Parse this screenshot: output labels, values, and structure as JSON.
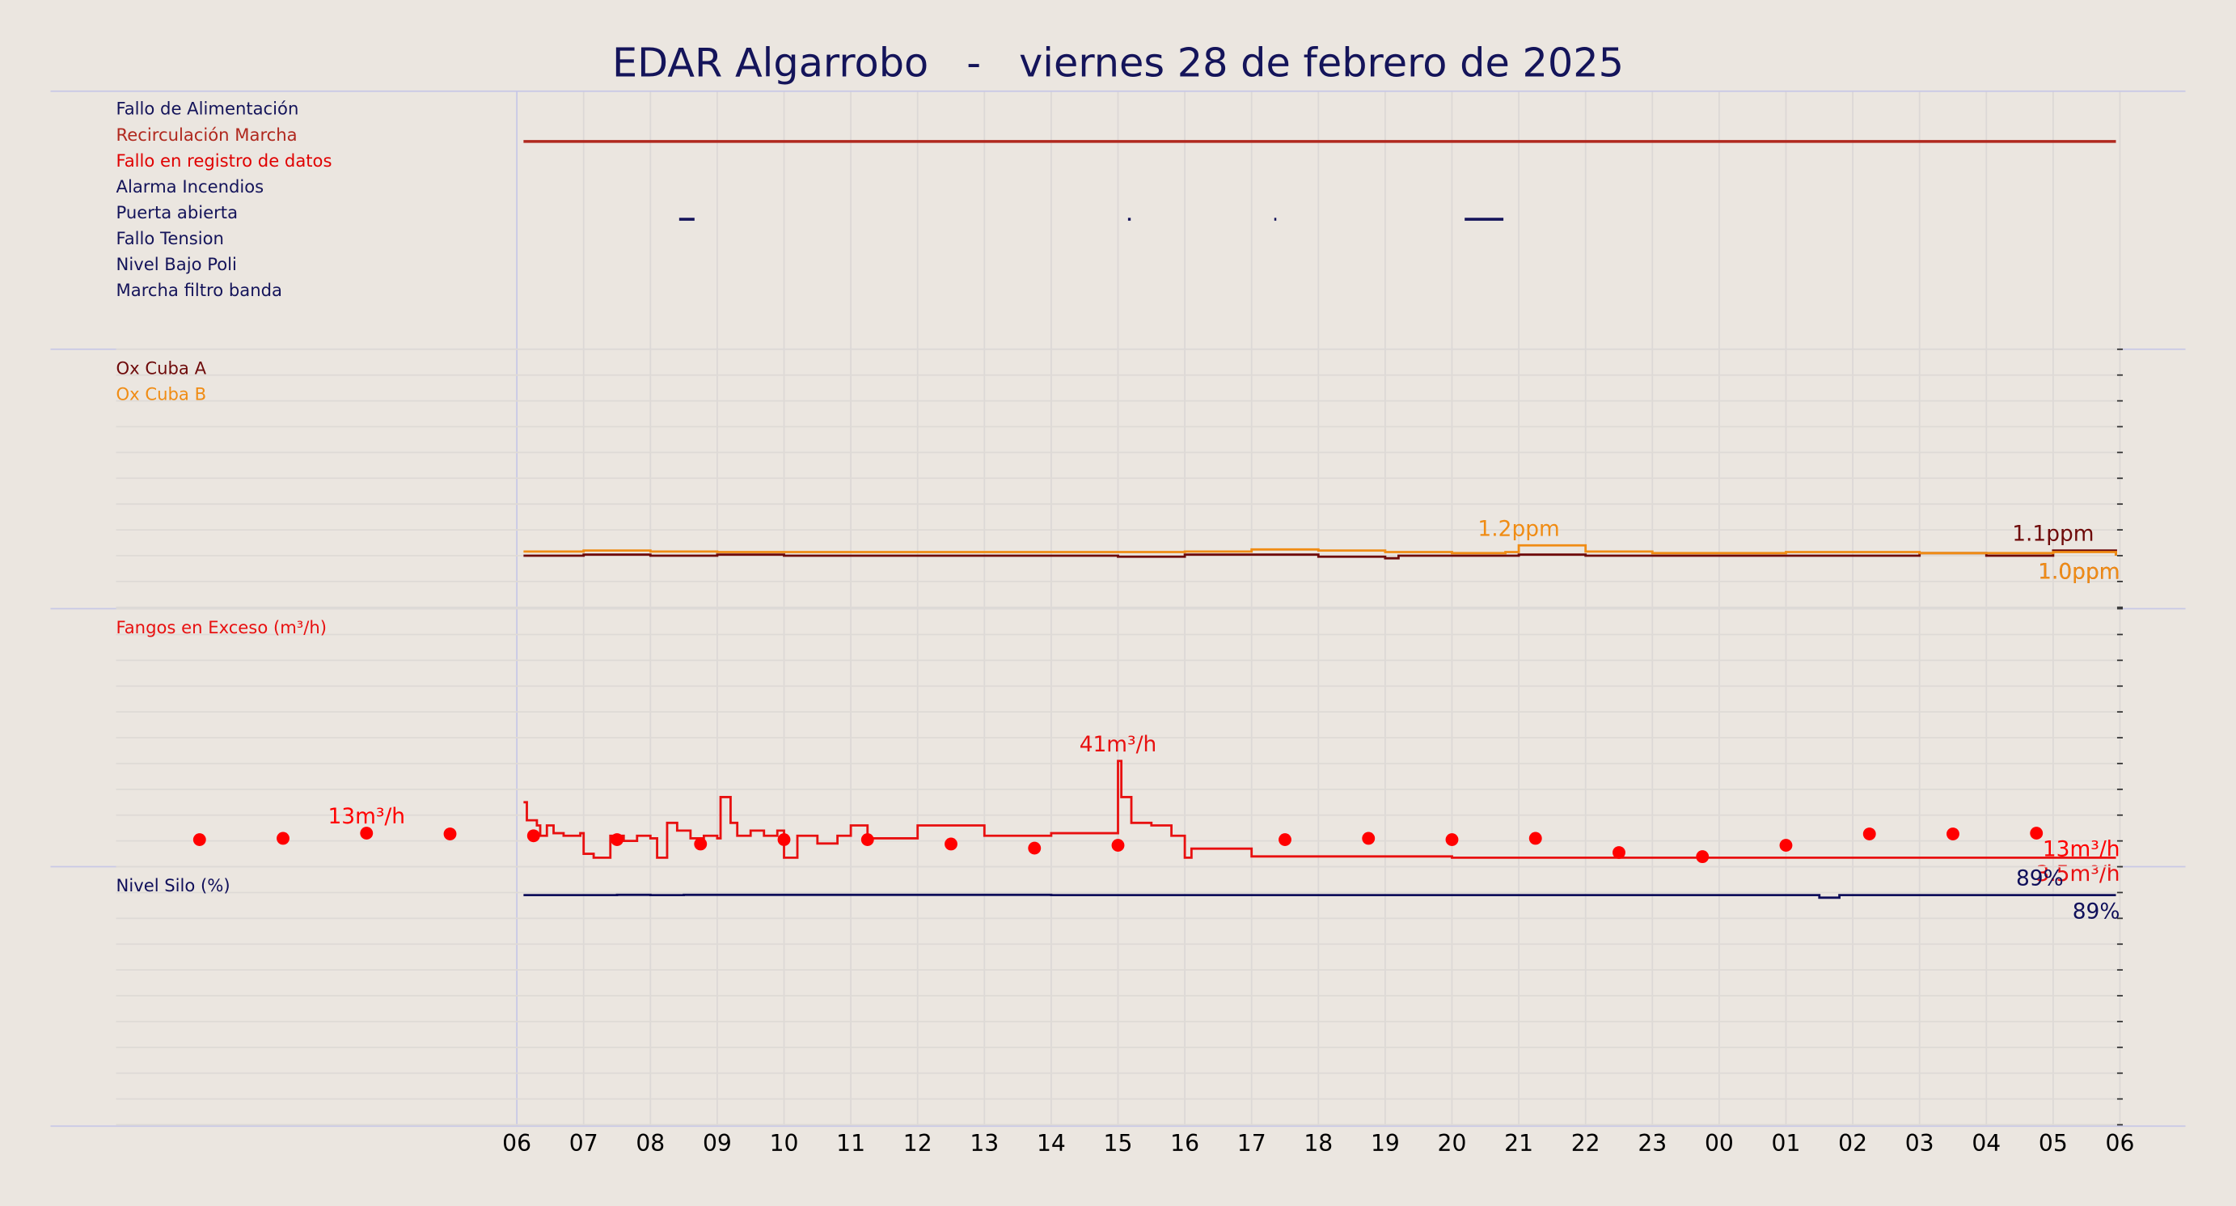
{
  "title": "EDAR Algarrobo   -   viernes 28 de febrero de 2025",
  "xlim": [
    -6,
    24
  ],
  "xticks": [
    {
      "value": 0,
      "label": "06"
    },
    {
      "value": 1,
      "label": "07"
    },
    {
      "value": 2,
      "label": "08"
    },
    {
      "value": 3,
      "label": "09"
    },
    {
      "value": 4,
      "label": "10"
    },
    {
      "value": 5,
      "label": "11"
    },
    {
      "value": 6,
      "label": "12"
    },
    {
      "value": 7,
      "label": "13"
    },
    {
      "value": 8,
      "label": "14"
    },
    {
      "value": 9,
      "label": "15"
    },
    {
      "value": 10,
      "label": "16"
    },
    {
      "value": 11,
      "label": "17"
    },
    {
      "value": 12,
      "label": "18"
    },
    {
      "value": 13,
      "label": "19"
    },
    {
      "value": 14,
      "label": "20"
    },
    {
      "value": 15,
      "label": "21"
    },
    {
      "value": 16,
      "label": "22"
    },
    {
      "value": 17,
      "label": "23"
    },
    {
      "value": 18,
      "label": "00"
    },
    {
      "value": 19,
      "label": "01"
    },
    {
      "value": 20,
      "label": "02"
    },
    {
      "value": 21,
      "label": "03"
    },
    {
      "value": 22,
      "label": "04"
    },
    {
      "value": 23,
      "label": "05"
    },
    {
      "value": 24,
      "label": "06"
    }
  ],
  "chart_data": [
    {
      "type": "digital",
      "series": [
        {
          "name": "Fallo de Alimentación",
          "color": "#14145a",
          "intervals": []
        },
        {
          "name": "Recirculación Marcha",
          "color": "#b0281e",
          "intervals": [
            [
              0.1,
              23.94
            ]
          ]
        },
        {
          "name": "Fallo en registro de datos",
          "color": "#e00000",
          "intervals": []
        },
        {
          "name": "Alarma Incendios",
          "color": "#14145a",
          "intervals": []
        },
        {
          "name": "Puerta abierta",
          "color": "#14145a",
          "intervals": [
            [
              2.43,
              2.66
            ],
            [
              9.15,
              9.19
            ],
            [
              11.34,
              11.37
            ],
            [
              14.19,
              14.77
            ]
          ]
        },
        {
          "name": "Fallo Tension",
          "color": "#14145a",
          "intervals": []
        },
        {
          "name": "Nivel Bajo Poli",
          "color": "#14145a",
          "intervals": []
        },
        {
          "name": "Marcha filtro banda",
          "color": "#14145a",
          "intervals": []
        }
      ]
    },
    {
      "type": "line",
      "ylim": [
        0,
        5
      ],
      "yticks": [
        0,
        0.5,
        1,
        1.5,
        2,
        2.5,
        3,
        3.5,
        4,
        4.5,
        5
      ],
      "series": [
        {
          "name": "Ox Cuba A",
          "color": "#6e0a0a",
          "x": [
            0.1,
            1,
            2,
            3,
            4,
            5,
            6,
            7,
            8,
            9,
            10,
            11,
            12,
            13,
            13.2,
            14,
            15,
            16,
            17,
            18,
            19,
            20,
            21,
            22,
            23,
            23.94
          ],
          "values": [
            1.0,
            1.02,
            1.0,
            1.02,
            1.0,
            1.0,
            1.0,
            1.0,
            1.0,
            0.98,
            1.02,
            1.02,
            0.98,
            0.95,
            1.0,
            1.0,
            1.02,
            1.0,
            1.0,
            1.0,
            1.0,
            1.0,
            1.05,
            1.0,
            1.1,
            1.0
          ],
          "value_labels": [
            null,
            null,
            null,
            null,
            null,
            null,
            null,
            null,
            null,
            null,
            null,
            null,
            null,
            null,
            null,
            null,
            null,
            null,
            null,
            null,
            null,
            null,
            null,
            null,
            "1.1ppm",
            "1.0ppm"
          ]
        },
        {
          "name": "Ox Cuba B",
          "color": "#f08c14",
          "x": [
            0.1,
            1,
            2,
            3,
            4,
            5,
            6,
            7,
            8,
            9,
            10,
            11,
            12,
            13,
            14,
            14.8,
            15,
            16,
            17,
            18,
            19,
            20,
            21,
            22,
            23,
            23.94
          ],
          "values": [
            1.08,
            1.1,
            1.08,
            1.07,
            1.07,
            1.07,
            1.07,
            1.07,
            1.07,
            1.07,
            1.08,
            1.12,
            1.1,
            1.07,
            1.05,
            1.07,
            1.2,
            1.08,
            1.05,
            1.05,
            1.07,
            1.07,
            1.05,
            1.05,
            1.07,
            1.0
          ],
          "value_labels": [
            null,
            null,
            null,
            null,
            null,
            null,
            null,
            null,
            null,
            null,
            null,
            null,
            null,
            null,
            null,
            null,
            "1.2ppm",
            null,
            null,
            null,
            null,
            null,
            null,
            null,
            null,
            "1.0ppm"
          ]
        }
      ]
    },
    {
      "type": "line",
      "ylim": [
        0,
        100
      ],
      "yticks": [
        0,
        10,
        20,
        30,
        40,
        50,
        60,
        70,
        80,
        90,
        100
      ],
      "series": [
        {
          "name": "Fangos en Exceso (m³/h)",
          "color": "#e81010",
          "x": [
            0.1,
            0.15,
            0.3,
            0.35,
            0.45,
            0.55,
            0.7,
            0.95,
            1.0,
            1.15,
            1.4,
            1.6,
            1.8,
            2.0,
            2.1,
            2.25,
            2.4,
            2.6,
            2.8,
            3.0,
            3.05,
            3.2,
            3.3,
            3.5,
            3.7,
            3.9,
            4.0,
            4.2,
            4.5,
            4.8,
            5.0,
            5.25,
            6.0,
            7.0,
            8.0,
            9.0,
            9.05,
            9.2,
            9.5,
            9.8,
            10.0,
            10.1,
            11.0,
            14.0,
            17.0,
            20.0,
            23.94
          ],
          "values": [
            25,
            18,
            16,
            12,
            16,
            13,
            12,
            13,
            5,
            3.5,
            12,
            10,
            12,
            11,
            3.5,
            17,
            14,
            11,
            12,
            11,
            27,
            17,
            12,
            14,
            12,
            14,
            3.5,
            12,
            9,
            12,
            16,
            11,
            16,
            12,
            13,
            41,
            27,
            17,
            16,
            12,
            3.5,
            7,
            4,
            3.5,
            3.5,
            3.5,
            3.5
          ],
          "value_labels": [
            null,
            null,
            null,
            null,
            null,
            null,
            null,
            null,
            null,
            null,
            null,
            null,
            null,
            null,
            null,
            null,
            null,
            null,
            null,
            null,
            null,
            null,
            null,
            null,
            null,
            null,
            null,
            null,
            null,
            null,
            null,
            null,
            null,
            null,
            null,
            "41m³/h",
            null,
            null,
            null,
            null,
            null,
            null,
            null,
            null,
            null,
            null,
            "3.5m³/h"
          ]
        },
        {
          "type": "scatter",
          "color": "#ff0000",
          "x": [
            -4.75,
            -3.5,
            -2.25,
            -1,
            0.25,
            1.5,
            2.75,
            4,
            5.25,
            6.5,
            7.75,
            9,
            11.5,
            12.75,
            14,
            15.25,
            16.5,
            17.75,
            19,
            20.25,
            21.5,
            22.75
          ],
          "values": [
            10.5,
            11,
            13,
            12.7,
            12,
            10.5,
            8.8,
            10.5,
            10.5,
            8.8,
            7.2,
            8.3,
            10.5,
            11,
            10.5,
            11,
            5.5,
            3.9,
            8.3,
            12.7,
            12.7,
            13
          ],
          "value_labels": [
            null,
            null,
            "13m³/h",
            null,
            null,
            null,
            null,
            null,
            null,
            null,
            null,
            null,
            null,
            null,
            null,
            null,
            null,
            null,
            null,
            null,
            null,
            "13m³/h"
          ]
        }
      ]
    },
    {
      "type": "line",
      "ylim": [
        0,
        100
      ],
      "yticks": [
        0,
        10,
        20,
        30,
        40,
        50,
        60,
        70,
        80,
        90,
        100
      ],
      "series": [
        {
          "name": "Nivel Silo (%)",
          "color": "#0f0f5a",
          "x": [
            0.1,
            1,
            1.5,
            2,
            2.5,
            8,
            19.5,
            19.8,
            22.8,
            23.94
          ],
          "values": [
            89,
            89,
            89.1,
            89,
            89.1,
            89,
            88,
            89,
            89,
            89
          ],
          "value_labels": [
            null,
            null,
            null,
            null,
            null,
            null,
            null,
            null,
            "89%",
            "89%"
          ]
        }
      ]
    }
  ]
}
